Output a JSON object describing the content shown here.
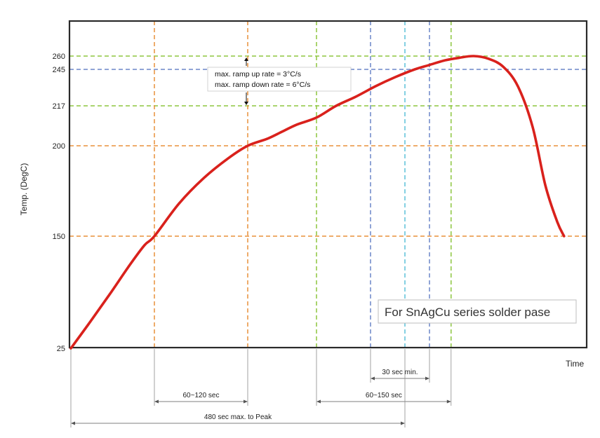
{
  "chart_data": {
    "type": "line",
    "title": "",
    "xlabel": "Time",
    "ylabel": "Temp. (DegC)",
    "y_ticks": [
      25,
      150,
      200,
      217,
      245,
      260
    ],
    "series": [
      {
        "color": "#d9211c",
        "points": [
          [
            0,
            25
          ],
          [
            20,
            55
          ],
          [
            40,
            86
          ],
          [
            60,
            118
          ],
          [
            75,
            140
          ],
          [
            85,
            150
          ],
          [
            110,
            168
          ],
          [
            135,
            182
          ],
          [
            160,
            193
          ],
          [
            180,
            200
          ],
          [
            200,
            203
          ],
          [
            215,
            206
          ],
          [
            230,
            209
          ],
          [
            250,
            212
          ],
          [
            270,
            217
          ],
          [
            290,
            224
          ],
          [
            310,
            232
          ],
          [
            330,
            239
          ],
          [
            350,
            245
          ],
          [
            365,
            250
          ],
          [
            380,
            255
          ],
          [
            395,
            258
          ],
          [
            410,
            260
          ],
          [
            425,
            257
          ],
          [
            440,
            248
          ],
          [
            455,
            232
          ],
          [
            470,
            208
          ],
          [
            483,
            178
          ],
          [
            495,
            158
          ],
          [
            502,
            150
          ]
        ]
      }
    ],
    "ref_lines_h": [
      {
        "y": 150,
        "color": "#e8913a"
      },
      {
        "y": 200,
        "color": "#e8913a"
      },
      {
        "y": 217,
        "color": "#8dc63f"
      },
      {
        "y": 245,
        "color": "#6b86c8"
      },
      {
        "y": 260,
        "color": "#8dc63f"
      }
    ],
    "ref_lines_v": [
      {
        "x": 85,
        "color": "#e8913a"
      },
      {
        "x": 180,
        "color": "#e8913a"
      },
      {
        "x": 250,
        "color": "#8dc63f"
      },
      {
        "x": 305,
        "color": "#6b86c8"
      },
      {
        "x": 340,
        "color": "#5bc0d8"
      },
      {
        "x": 365,
        "color": "#6b86c8"
      },
      {
        "x": 387,
        "color": "#8dc63f"
      }
    ],
    "dimensions": [
      {
        "label": "30 sec min.",
        "from": 305,
        "to": 365
      },
      {
        "label": "60~120 sec",
        "from": 85,
        "to": 180
      },
      {
        "label": "60~150 sec",
        "from": 250,
        "to": 387
      },
      {
        "label": "480 sec max. to Peak",
        "from": 0,
        "to": 340
      }
    ],
    "annotation": {
      "line1": "max. ramp up rate = 3°C/s",
      "line2": "max. ramp down rate = 6°C/s"
    },
    "note": "For SnAgCu series solder pase",
    "grid": false,
    "legend": "none"
  }
}
